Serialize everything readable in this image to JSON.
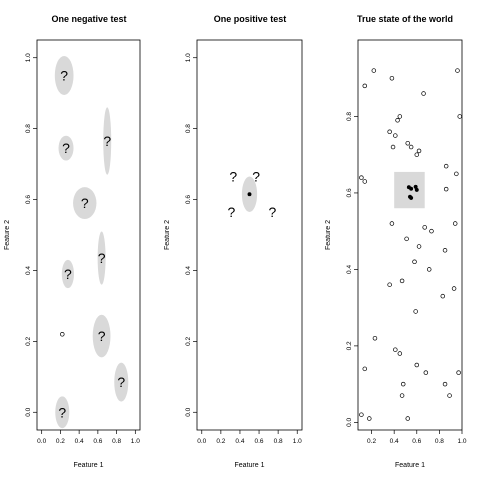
{
  "chart_data": [
    {
      "type": "scatter",
      "title": "One negative test",
      "xlabel": "Feature 1",
      "ylabel": "Feature 2",
      "xlim": [
        -0.05,
        1.05
      ],
      "ylim": [
        -0.05,
        1.05
      ],
      "xticks": [
        "0.0",
        "0.2",
        "0.4",
        "0.6",
        "0.8",
        "1.0"
      ],
      "yticks": [
        "0.0",
        "0.2",
        "0.4",
        "0.6",
        "0.8",
        "1.0"
      ],
      "regions": [
        {
          "x": 0.24,
          "y": 0.95,
          "rx": 0.2,
          "ry": 0.055,
          "label": "?"
        },
        {
          "x": 0.26,
          "y": 0.745,
          "rx": 0.16,
          "ry": 0.035,
          "label": "?"
        },
        {
          "x": 0.7,
          "y": 0.765,
          "rx": 0.085,
          "ry": 0.095,
          "label": "?"
        },
        {
          "x": 0.46,
          "y": 0.59,
          "rx": 0.25,
          "ry": 0.045,
          "label": "?"
        },
        {
          "x": 0.64,
          "y": 0.435,
          "rx": 0.085,
          "ry": 0.075,
          "label": "?"
        },
        {
          "x": 0.28,
          "y": 0.39,
          "rx": 0.13,
          "ry": 0.04,
          "label": "?"
        },
        {
          "x": 0.64,
          "y": 0.215,
          "rx": 0.19,
          "ry": 0.06,
          "label": "?"
        },
        {
          "x": 0.85,
          "y": 0.085,
          "rx": 0.15,
          "ry": 0.055,
          "label": "?"
        },
        {
          "x": 0.22,
          "y": 0.0,
          "rx": 0.15,
          "ry": 0.045,
          "label": "?"
        }
      ],
      "points": [
        {
          "x": 0.22,
          "y": 0.22,
          "filled": false
        }
      ]
    },
    {
      "type": "scatter",
      "title": "One positive test",
      "xlabel": "Feature 1",
      "ylabel": "Feature 2",
      "xlim": [
        -0.05,
        1.05
      ],
      "ylim": [
        -0.05,
        1.05
      ],
      "xticks": [
        "0.0",
        "0.2",
        "0.4",
        "0.6",
        "0.8",
        "1.0"
      ],
      "yticks": [
        "0.0",
        "0.2",
        "0.4",
        "0.6",
        "0.8",
        "1.0"
      ],
      "regions": [
        {
          "x": 0.5,
          "y": 0.615,
          "rx": 0.16,
          "ry": 0.05,
          "label": ""
        }
      ],
      "points": [
        {
          "x": 0.5,
          "y": 0.615,
          "filled": true
        }
      ],
      "annotations": [
        {
          "x": 0.33,
          "y": 0.665,
          "text": "?"
        },
        {
          "x": 0.57,
          "y": 0.665,
          "text": "?"
        },
        {
          "x": 0.31,
          "y": 0.565,
          "text": "?"
        },
        {
          "x": 0.74,
          "y": 0.565,
          "text": "?"
        }
      ]
    },
    {
      "type": "scatter",
      "title": "True state of the world",
      "xlabel": "Feature 1",
      "ylabel": "Feature 2",
      "xlim": [
        0.08,
        1.0
      ],
      "ylim": [
        -0.02,
        1.0
      ],
      "xticks": [
        "0.2",
        "0.4",
        "0.6",
        "0.8",
        "1.0"
      ],
      "yticks": [
        "0.0",
        "0.2",
        "0.4",
        "0.6",
        "0.8"
      ],
      "rect": {
        "x0": 0.4,
        "x1": 0.67,
        "y0": 0.56,
        "y1": 0.655
      },
      "filled_points": [
        {
          "x": 0.53,
          "y": 0.615
        },
        {
          "x": 0.55,
          "y": 0.611
        },
        {
          "x": 0.59,
          "y": 0.616
        },
        {
          "x": 0.6,
          "y": 0.608
        },
        {
          "x": 0.54,
          "y": 0.59
        },
        {
          "x": 0.55,
          "y": 0.587
        }
      ],
      "points": [
        {
          "x": 0.22,
          "y": 0.92
        },
        {
          "x": 0.14,
          "y": 0.88
        },
        {
          "x": 0.38,
          "y": 0.9
        },
        {
          "x": 0.66,
          "y": 0.86
        },
        {
          "x": 0.96,
          "y": 0.92
        },
        {
          "x": 0.43,
          "y": 0.79
        },
        {
          "x": 0.45,
          "y": 0.8
        },
        {
          "x": 0.36,
          "y": 0.76
        },
        {
          "x": 0.41,
          "y": 0.75
        },
        {
          "x": 0.52,
          "y": 0.73
        },
        {
          "x": 0.55,
          "y": 0.72
        },
        {
          "x": 0.62,
          "y": 0.71
        },
        {
          "x": 0.39,
          "y": 0.72
        },
        {
          "x": 0.98,
          "y": 0.8
        },
        {
          "x": 0.6,
          "y": 0.7
        },
        {
          "x": 0.86,
          "y": 0.67
        },
        {
          "x": 0.11,
          "y": 0.64
        },
        {
          "x": 0.14,
          "y": 0.63
        },
        {
          "x": 0.95,
          "y": 0.65
        },
        {
          "x": 0.86,
          "y": 0.61
        },
        {
          "x": 0.38,
          "y": 0.52
        },
        {
          "x": 0.67,
          "y": 0.51
        },
        {
          "x": 0.94,
          "y": 0.52
        },
        {
          "x": 0.73,
          "y": 0.5
        },
        {
          "x": 0.51,
          "y": 0.48
        },
        {
          "x": 0.62,
          "y": 0.46
        },
        {
          "x": 0.85,
          "y": 0.45
        },
        {
          "x": 0.58,
          "y": 0.42
        },
        {
          "x": 0.71,
          "y": 0.4
        },
        {
          "x": 0.47,
          "y": 0.37
        },
        {
          "x": 0.36,
          "y": 0.36
        },
        {
          "x": 0.93,
          "y": 0.35
        },
        {
          "x": 0.83,
          "y": 0.33
        },
        {
          "x": 0.59,
          "y": 0.29
        },
        {
          "x": 0.23,
          "y": 0.22
        },
        {
          "x": 0.41,
          "y": 0.19
        },
        {
          "x": 0.45,
          "y": 0.18
        },
        {
          "x": 0.6,
          "y": 0.15
        },
        {
          "x": 0.68,
          "y": 0.13
        },
        {
          "x": 0.14,
          "y": 0.14
        },
        {
          "x": 0.97,
          "y": 0.13
        },
        {
          "x": 0.48,
          "y": 0.1
        },
        {
          "x": 0.85,
          "y": 0.1
        },
        {
          "x": 0.47,
          "y": 0.07
        },
        {
          "x": 0.89,
          "y": 0.07
        },
        {
          "x": 0.11,
          "y": 0.02
        },
        {
          "x": 0.18,
          "y": 0.01
        },
        {
          "x": 0.52,
          "y": 0.01
        }
      ]
    }
  ]
}
